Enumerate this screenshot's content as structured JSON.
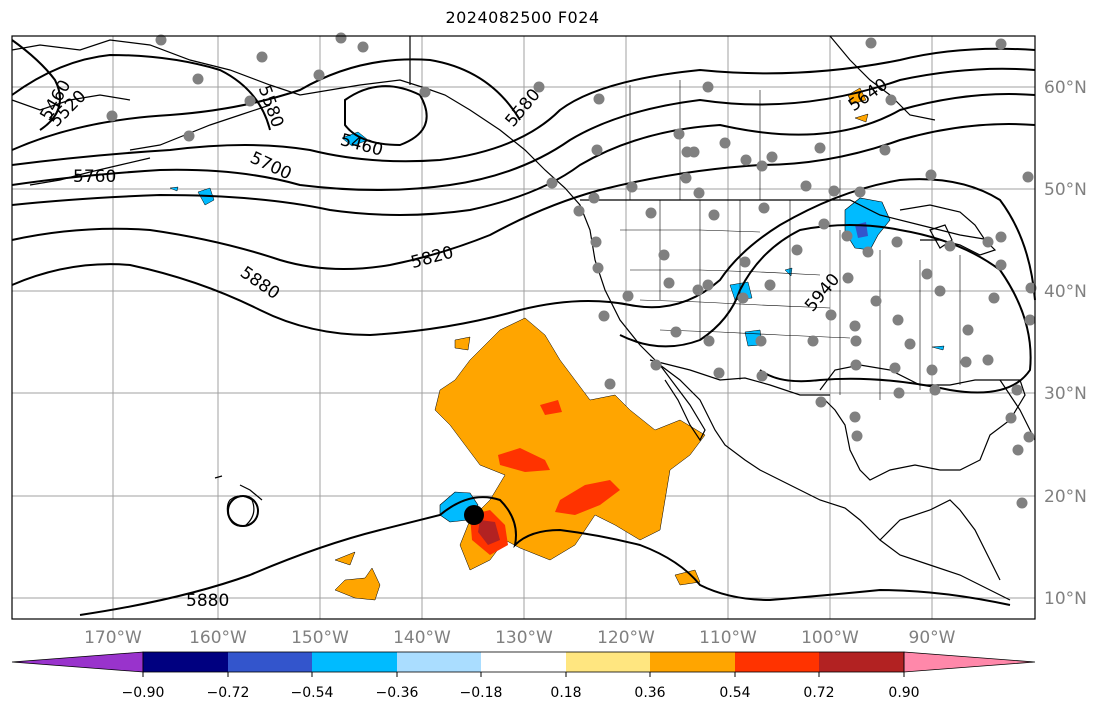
{
  "title": "2024082500 F024",
  "map": {
    "lon_labels": [
      "170°W",
      "160°W",
      "150°W",
      "140°W",
      "130°W",
      "120°W",
      "110°W",
      "100°W",
      "90°W"
    ],
    "lat_labels": [
      "60°N",
      "50°N",
      "40°N",
      "30°N",
      "20°N",
      "10°N"
    ],
    "contour_labels": [
      "5460",
      "5520",
      "5580",
      "5460",
      "5580",
      "5640",
      "5760",
      "5700",
      "5820",
      "5880",
      "5940",
      "5880"
    ],
    "contour_color": "#000000",
    "grid_color": "#a0a0a0",
    "station_color": "#808080"
  },
  "colorbar": {
    "ticks": [
      "−0.90",
      "−0.72",
      "−0.54",
      "−0.36",
      "−0.18",
      "0.18",
      "0.36",
      "0.54",
      "0.72",
      "0.90"
    ],
    "colors": [
      "#9933cc",
      "#000080",
      "#3355cc",
      "#00bbff",
      "#aaddff",
      "#ffffff",
      "#ffe680",
      "#ffa500",
      "#ff3300",
      "#b22222",
      "#ff88aa"
    ]
  }
}
